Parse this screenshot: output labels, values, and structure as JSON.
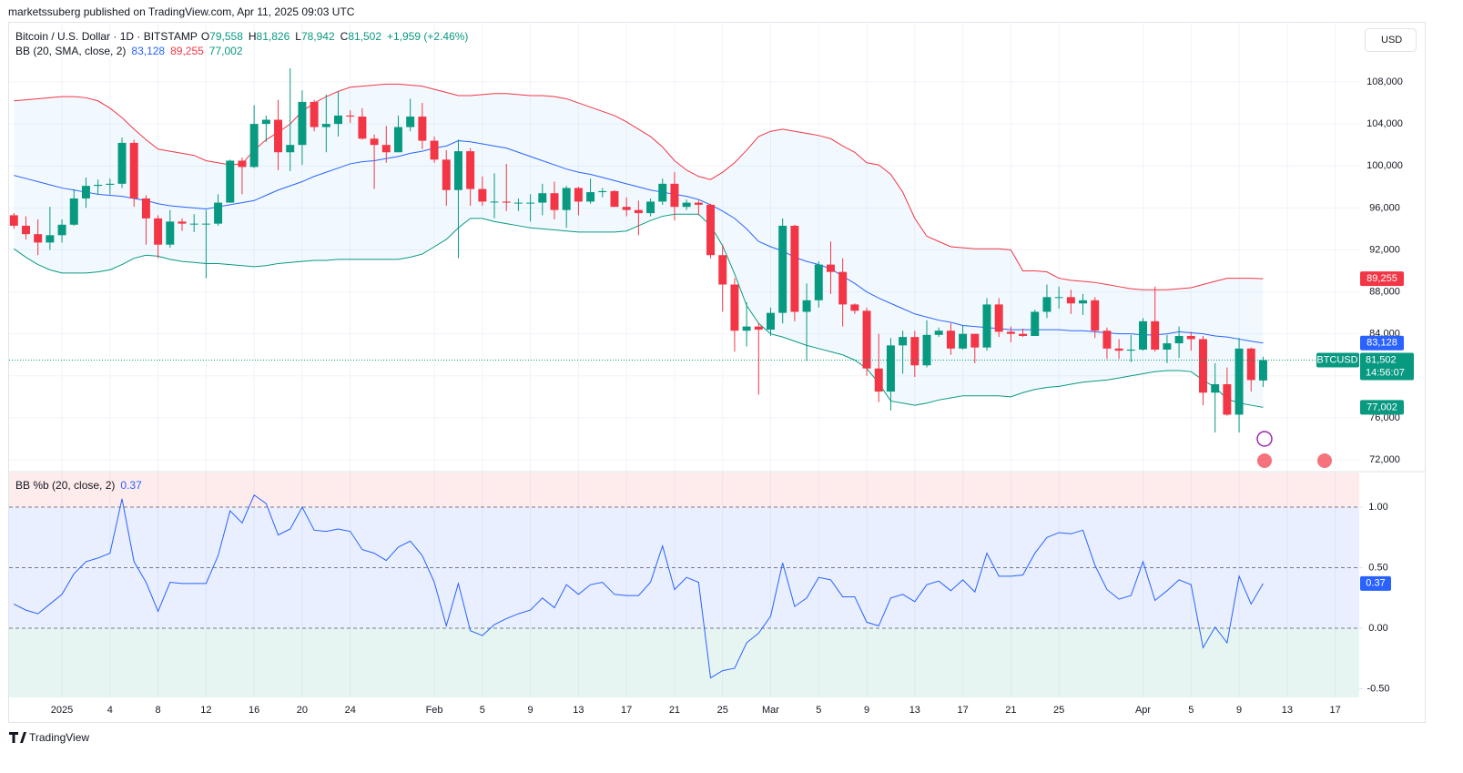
{
  "header": {
    "published": "marketssuberg published on TradingView.com, Apr 11, 2025 09:03 UTC",
    "brand": "TradingView"
  },
  "chart_data": [
    {
      "type": "candlestick",
      "title": "Bitcoin / U.S. Dollar · 1D · BITSTAMP",
      "legend": [
        {
          "label": "O",
          "text": "79,558"
        },
        {
          "label": "H",
          "text": "81,826"
        },
        {
          "label": "L",
          "text": "78,942"
        },
        {
          "label": "C",
          "text": "81,502"
        }
      ],
      "change": "+1,959 (+2.46%)",
      "currency": "USD",
      "symbol_label": "BTCUSD",
      "last_price_text": "81,502",
      "countdown": "14:56:07",
      "up_color": "#089981",
      "down_color": "#f23645",
      "x": [
        -4,
        -3,
        -2,
        -1,
        0,
        1,
        2,
        3,
        4,
        5,
        6,
        7,
        8,
        9,
        10,
        11,
        12,
        13,
        14,
        15,
        16,
        17,
        18,
        19,
        20,
        21,
        22,
        23,
        24,
        25,
        26,
        27,
        28,
        29,
        30,
        31,
        32,
        33,
        34,
        35,
        36,
        37,
        38,
        39,
        40,
        41,
        42,
        43,
        44,
        45,
        46,
        47,
        48,
        49,
        50,
        51,
        52,
        53,
        54,
        55,
        56,
        57,
        58,
        59,
        60,
        61,
        62,
        63,
        64,
        65,
        66,
        67,
        68,
        69,
        70,
        71,
        72,
        73,
        74,
        75,
        76,
        77,
        78,
        79,
        80,
        81,
        82,
        83,
        84,
        85,
        86,
        87,
        88,
        89,
        90,
        91,
        92,
        93,
        94,
        95,
        96,
        97,
        98,
        99,
        100
      ],
      "open": [
        95300,
        94300,
        93500,
        92700,
        93400,
        94400,
        96900,
        98100,
        98200,
        98300,
        102200,
        96900,
        95000,
        92500,
        94700,
        94500,
        94500,
        94500,
        96500,
        100500,
        99900,
        104000,
        104400,
        101300,
        102000,
        106100,
        103700,
        104000,
        104800,
        104700,
        102600,
        102000,
        101300,
        103700,
        104700,
        102400,
        100600,
        97700,
        101400,
        97800,
        96600,
        96600,
        96500,
        96500,
        96500,
        97400,
        95800,
        97900,
        96600,
        97500,
        97600,
        96100,
        95800,
        95500,
        96600,
        98300,
        96100,
        96500,
        96300,
        91500,
        88700,
        84300,
        84700,
        84400,
        86000,
        94300,
        86100,
        87200,
        90600,
        89900,
        86800,
        86200,
        80700,
        78500,
        82900,
        83700,
        81000,
        83900,
        84300,
        82600,
        84000,
        82700,
        86800,
        84200,
        84000,
        83800,
        86100,
        87500,
        87500,
        86900,
        87200,
        84300,
        82600,
        82400,
        82500,
        85200,
        82500,
        83100,
        83800,
        83500,
        78400,
        79200,
        76300,
        82600,
        79558
      ],
      "high": [
        95500,
        95200,
        94900,
        96100,
        94900,
        97800,
        98900,
        98700,
        98800,
        102700,
        102500,
        97200,
        95300,
        95800,
        95000,
        95400,
        95800,
        97300,
        100600,
        100800,
        105800,
        104800,
        106300,
        109300,
        107200,
        106300,
        106800,
        107100,
        105300,
        105500,
        103000,
        103800,
        104800,
        106400,
        106000,
        102800,
        101500,
        102500,
        101700,
        99000,
        99300,
        100200,
        96900,
        97300,
        98300,
        98500,
        98100,
        98000,
        98800,
        97900,
        97700,
        97000,
        96700,
        96900,
        98800,
        99400,
        96800,
        96700,
        96400,
        92500,
        89300,
        87000,
        85000,
        86500,
        95000,
        94400,
        88800,
        90900,
        92800,
        91200,
        86900,
        86500,
        84000,
        83600,
        84300,
        84300,
        85300,
        84600,
        85000,
        84800,
        84000,
        87400,
        87400,
        84700,
        84500,
        86300,
        88700,
        88500,
        88200,
        87800,
        87500,
        84600,
        83500,
        83900,
        85500,
        88500,
        83900,
        84700,
        84200,
        83800,
        81200,
        80800,
        83600,
        82700,
        81826
      ],
      "low": [
        94000,
        93000,
        91500,
        92000,
        92700,
        94300,
        96000,
        97300,
        97300,
        97900,
        96100,
        92500,
        91200,
        92200,
        93800,
        93700,
        89300,
        94300,
        96500,
        97300,
        99800,
        102300,
        99600,
        99500,
        100100,
        103300,
        101300,
        102800,
        104100,
        102500,
        97800,
        100300,
        101300,
        103300,
        101600,
        100300,
        96200,
        91200,
        96200,
        96200,
        95000,
        95700,
        95700,
        94700,
        95300,
        94900,
        94100,
        95300,
        96400,
        97000,
        96100,
        95200,
        93400,
        95200,
        96300,
        94800,
        95800,
        95300,
        91200,
        86100,
        82300,
        82800,
        78200,
        83800,
        85000,
        85200,
        81400,
        86500,
        87800,
        84700,
        85900,
        80000,
        77500,
        76700,
        80200,
        79900,
        80800,
        83700,
        82000,
        82500,
        81200,
        82400,
        83700,
        83200,
        83700,
        83800,
        85500,
        86400,
        85900,
        85800,
        83600,
        81600,
        81600,
        81300,
        82400,
        82300,
        81200,
        81700,
        82400,
        77200,
        74600,
        76200,
        74600,
        78500,
        78942
      ],
      "close": [
        94300,
        93500,
        92700,
        93400,
        94400,
        96900,
        98100,
        98200,
        98300,
        102200,
        96900,
        95000,
        92500,
        94700,
        94500,
        94500,
        94500,
        96500,
        100500,
        99900,
        104000,
        104400,
        101300,
        102000,
        106100,
        103700,
        104000,
        104800,
        104700,
        102600,
        102000,
        101300,
        103700,
        104700,
        102400,
        100600,
        97700,
        101400,
        97800,
        96600,
        96600,
        96500,
        96500,
        96500,
        97400,
        95800,
        97900,
        96600,
        97500,
        97600,
        96100,
        95800,
        95500,
        96600,
        98300,
        96100,
        96500,
        96300,
        91500,
        88700,
        84300,
        84700,
        84400,
        86000,
        94300,
        86100,
        87200,
        90600,
        89900,
        86800,
        86200,
        80700,
        78500,
        82900,
        83700,
        81000,
        83900,
        84300,
        82600,
        84000,
        82700,
        86800,
        84200,
        84000,
        83800,
        86100,
        87500,
        87500,
        86900,
        87200,
        84300,
        82600,
        82400,
        82500,
        85200,
        82500,
        83100,
        83800,
        83500,
        78400,
        79200,
        76300,
        82600,
        79600,
        81502
      ],
      "indicator": {
        "name": "BB (20, SMA, close, 2)",
        "values": [
          "83,128",
          "89,255",
          "77,002"
        ],
        "fill": "#2196f3"
      },
      "bands": [
        {
          "color": "#2962ff",
          "values": [
            99100,
            98800,
            98500,
            98200,
            97900,
            97700,
            97500,
            97300,
            97200,
            97100,
            96900,
            96700,
            96400,
            96200,
            96100,
            96000,
            95900,
            96100,
            96300,
            96500,
            96700,
            97200,
            97700,
            98100,
            98500,
            99000,
            99400,
            99800,
            100200,
            100400,
            100500,
            100700,
            100900,
            101200,
            101400,
            101700,
            101900,
            102400,
            102300,
            102100,
            101900,
            101700,
            101300,
            100900,
            100500,
            100100,
            99700,
            99400,
            99200,
            98900,
            98600,
            98300,
            98000,
            97700,
            97500,
            97300,
            97100,
            96800,
            96300,
            95700,
            95000,
            94000,
            92800,
            92300,
            91900,
            91300,
            90900,
            90600,
            90200,
            89500,
            88800,
            88000,
            87400,
            86900,
            86400,
            85900,
            85600,
            85300,
            85100,
            84800,
            84700,
            84600,
            84500,
            84400,
            84400,
            84400,
            84400,
            84400,
            84300,
            84300,
            84200,
            84100,
            84000,
            84000,
            83900,
            83900,
            84000,
            84200,
            84100,
            84000,
            83800,
            83700,
            83500,
            83300,
            83128
          ]
        },
        {
          "color": "#f23645",
          "values": [
            106200,
            106300,
            106400,
            106500,
            106600,
            106600,
            106500,
            106200,
            105500,
            104600,
            103500,
            102500,
            101600,
            101400,
            101200,
            101000,
            100500,
            100300,
            100100,
            100200,
            101500,
            102500,
            103200,
            104000,
            105200,
            106000,
            106600,
            107100,
            107500,
            107600,
            107700,
            107800,
            107800,
            107700,
            107600,
            107300,
            107000,
            106700,
            106700,
            106800,
            106900,
            106900,
            106800,
            106700,
            106700,
            106600,
            106400,
            106000,
            105600,
            105200,
            104800,
            104200,
            103500,
            102800,
            101800,
            100500,
            99600,
            99000,
            98700,
            99400,
            100300,
            101500,
            102800,
            103300,
            103500,
            103300,
            103100,
            102900,
            102600,
            101900,
            101300,
            100300,
            100100,
            99200,
            97500,
            95000,
            93300,
            92800,
            92300,
            92200,
            92100,
            92100,
            92100,
            92000,
            90000,
            90000,
            89900,
            89300,
            89100,
            89000,
            88900,
            88700,
            88500,
            88300,
            88200,
            88200,
            88200,
            88300,
            88400,
            88700,
            89000,
            89300,
            89300,
            89300,
            89255
          ]
        },
        {
          "color": "#089981",
          "values": [
            92100,
            91300,
            90600,
            90100,
            89800,
            89800,
            89800,
            89900,
            90100,
            90600,
            91200,
            91500,
            91400,
            91100,
            90900,
            90800,
            90700,
            90700,
            90600,
            90500,
            90400,
            90500,
            90700,
            90800,
            90900,
            91000,
            91000,
            91100,
            91100,
            91100,
            91100,
            91100,
            91100,
            91300,
            91600,
            92300,
            93000,
            94100,
            95000,
            95000,
            94700,
            94500,
            94300,
            94100,
            94000,
            93900,
            93800,
            93700,
            93700,
            93700,
            93700,
            93800,
            94300,
            94800,
            95200,
            95400,
            95400,
            95400,
            94300,
            92400,
            89700,
            86700,
            85000,
            84000,
            83700,
            83300,
            82900,
            82600,
            82300,
            82000,
            81500,
            80700,
            79300,
            77600,
            77400,
            77200,
            77400,
            77700,
            77900,
            78100,
            78100,
            78100,
            78100,
            78000,
            78400,
            78700,
            78900,
            79000,
            79200,
            79400,
            79500,
            79600,
            79800,
            80000,
            80200,
            80400,
            80500,
            80500,
            80400,
            79600,
            78900,
            77800,
            77400,
            77200,
            77002
          ]
        }
      ],
      "xlim": [
        -4.4,
        108
      ],
      "xticks": [
        {
          "value": 0,
          "label": "2025"
        },
        4,
        8,
        12,
        16,
        20,
        24,
        {
          "value": 31,
          "label": "Feb"
        },
        {
          "value": 35,
          "label": "5"
        },
        {
          "value": 39,
          "label": "9"
        },
        {
          "value": 43,
          "label": "13"
        },
        {
          "value": 47,
          "label": "17"
        },
        {
          "value": 51,
          "label": "21"
        },
        {
          "value": 55,
          "label": "25"
        },
        {
          "value": 59,
          "label": "Mar"
        },
        {
          "value": 63,
          "label": "5"
        },
        {
          "value": 67,
          "label": "9"
        },
        {
          "value": 71,
          "label": "13"
        },
        {
          "value": 75,
          "label": "17"
        },
        {
          "value": 79,
          "label": "21"
        },
        {
          "value": 83,
          "label": "25"
        },
        {
          "value": 90,
          "label": "Apr"
        },
        {
          "value": 94,
          "label": "5"
        },
        {
          "value": 98,
          "label": "9"
        },
        {
          "value": 102,
          "label": "13"
        },
        {
          "value": 106,
          "label": "17"
        }
      ],
      "ylim": [
        70960,
        113640
      ],
      "yticks": [
        {
          "value": 72000,
          "label": "72,000"
        },
        {
          "value": 76000,
          "label": "76,000"
        },
        {
          "value": 80000,
          "label": "80,000"
        },
        {
          "value": 84000,
          "label": "84,000"
        },
        {
          "value": 88000,
          "label": "88,000"
        },
        {
          "value": 92000,
          "label": "92,000"
        },
        {
          "value": 96000,
          "label": "96,000"
        },
        {
          "value": 100000,
          "label": "100,000"
        },
        {
          "value": 104000,
          "label": "104,000"
        },
        {
          "value": 108000,
          "label": "108,000"
        }
      ],
      "grid": true
    },
    {
      "type": "line",
      "title": "BB %b (20, close, 2)",
      "last_label": "0.37",
      "color": "#2962ff",
      "values": [
        0.2,
        0.15,
        0.12,
        0.2,
        0.28,
        0.45,
        0.55,
        0.58,
        0.62,
        1.07,
        0.55,
        0.38,
        0.14,
        0.38,
        0.37,
        0.37,
        0.37,
        0.6,
        0.97,
        0.87,
        1.1,
        1.03,
        0.77,
        0.82,
        1.0,
        0.81,
        0.8,
        0.82,
        0.8,
        0.65,
        0.62,
        0.56,
        0.67,
        0.72,
        0.6,
        0.38,
        0.02,
        0.37,
        -0.02,
        -0.06,
        0.03,
        0.08,
        0.12,
        0.15,
        0.25,
        0.17,
        0.36,
        0.28,
        0.36,
        0.38,
        0.28,
        0.27,
        0.27,
        0.38,
        0.68,
        0.32,
        0.42,
        0.38,
        -0.41,
        -0.35,
        -0.33,
        -0.12,
        -0.04,
        0.1,
        0.54,
        0.18,
        0.25,
        0.42,
        0.4,
        0.26,
        0.26,
        0.05,
        0.02,
        0.25,
        0.28,
        0.22,
        0.36,
        0.39,
        0.31,
        0.4,
        0.3,
        0.62,
        0.43,
        0.43,
        0.44,
        0.62,
        0.75,
        0.79,
        0.78,
        0.81,
        0.52,
        0.32,
        0.24,
        0.27,
        0.55,
        0.23,
        0.31,
        0.4,
        0.36,
        -0.16,
        0.01,
        -0.12,
        0.43,
        0.2,
        0.37
      ],
      "levels": {
        "upper": 1,
        "middle": 0.5,
        "lower": 0
      },
      "ylim": [
        -0.571,
        1.286
      ],
      "yticks": [
        {
          "value": -0.5,
          "label": "-0.50"
        },
        {
          "value": 0,
          "label": "0.00"
        },
        {
          "value": 0.5,
          "label": "0.50"
        },
        {
          "value": 1,
          "label": "1.00"
        }
      ]
    }
  ]
}
